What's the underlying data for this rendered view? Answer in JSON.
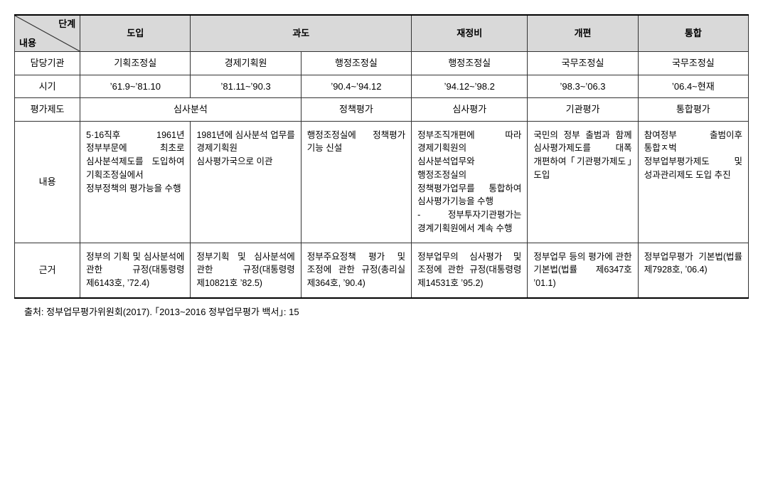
{
  "header": {
    "diag_top": "단계",
    "diag_bottom": "내용",
    "stages": [
      "도입",
      "과도",
      "재정비",
      "개편",
      "통합"
    ]
  },
  "rows": {
    "agency": {
      "label": "담당기관",
      "cells": [
        "기획조정실",
        "경제기획원",
        "행정조정실",
        "행정조정실",
        "국무조정실",
        "국무조정실"
      ]
    },
    "period": {
      "label": "시기",
      "cells": [
        "ʼ61.9~ʼ81.10",
        "ʼ81.11~ʼ90.3",
        "ʼ90.4~ʼ94.12",
        "ʼ94.12~ʼ98.2",
        "ʼ98.3~ʼ06.3",
        "ʼ06.4~현재"
      ]
    },
    "system": {
      "label": "평가제도",
      "cells_merged": {
        "first": "심사분석",
        "rest": [
          "정책평가",
          "심사평가",
          "기관평가",
          "통합평가"
        ]
      }
    },
    "content": {
      "label": "내용",
      "cells": [
        "5·16직후 1961년 정부부문에 최초로 심사분석제도를 도입하여 기획조정실에서 정부정책의 평가능을 수행",
        "1981년에 심사분석 업무를 경제기획원 심사평가국으로 이관",
        "행정조정실에 정책평가 기능 신설",
        "정부조직개편에 따라 경제기획원의 심사분석업무와 행정조정실의 정책평가업무를 통합하여 심사평가기능을 수행\n- 정부투자기관평가는 경계기획원에서 계속 수행",
        "국민의 정부 출범과 함께 심사평가제도를 대폭 개편하여 ｢기관평가제도｣도입",
        "참여정부 출범이후 통합ㅈ벅 정부업부평가제도 및 성과관리제도 도입 추진"
      ]
    },
    "basis": {
      "label": "근거",
      "cells": [
        "정부의 기획 및 심사분석에 관한 규정(대통령령 제6143호, ʼ72.4)",
        "정부기획 및 심사분석에 관한 규정(대통령령 제10821호 ʼ82.5)",
        "정부주요정책 평가 및 조정에 관한 규정(총리실 제364호, ʼ90.4)",
        "정부업무의 심사평가 및 조정에 관한 규정(대통령령 제14531호 ʼ95.2)",
        "정부업무 등의 평가에 관한 기본법(법률 제6347호 ʼ01.1)",
        "정부업무평가 기본법(법률 제7928호, ʼ06.4)"
      ]
    }
  },
  "source": "출처: 정부업무평가위원회(2017). ｢2013~2016 정부업무평가 백서｣: 15"
}
